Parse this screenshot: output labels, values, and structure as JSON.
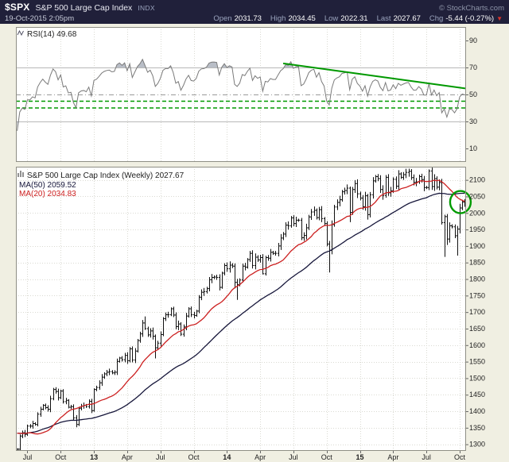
{
  "header": {
    "symbol": "$SPX",
    "name": "S&P 500 Large Cap Index",
    "exchange": "INDX",
    "copyright": "© StockCharts.com",
    "datetime": "19-Oct-2015 2:05pm",
    "quote": {
      "open_label": "Open",
      "open": "2031.73",
      "high_label": "High",
      "high": "2034.45",
      "low_label": "Low",
      "low": "2022.31",
      "last_label": "Last",
      "last": "2027.67",
      "chg_label": "Chg",
      "chg": "-5.44 (-0.27%)",
      "chg_direction": "down",
      "chg_arrow": "▼"
    },
    "colors": {
      "bg": "#20203a",
      "label": "#9aa3bd",
      "value": "#ffffff",
      "arrow": "#d9352b"
    }
  },
  "chart_data": [
    {
      "panel": "rsi",
      "type": "line",
      "title": "RSI(14) 49.68",
      "indicator": "RSI",
      "period": 14,
      "last_value": 49.68,
      "ylim": [
        0,
        100
      ],
      "yticks": [
        90,
        70,
        50,
        30,
        10
      ],
      "overbought_level": 70,
      "oversold_level": 30,
      "mid_level": 50,
      "green_dashed_levels": [
        45,
        40
      ],
      "trendline": {
        "from_week": 104,
        "from_rsi": 73,
        "to_week": 177,
        "to_rsi": 54.5,
        "color": "#009900"
      },
      "line_color": "#7a7a7a",
      "band_fill": "rgba(100,110,130,0.45)",
      "source": "RSI(14) computed from weekly_close of the price panel"
    },
    {
      "panel": "price",
      "type": "ohlc-bar",
      "title": "S&P 500 Large Cap Index (Weekly) 2027.67",
      "last_value": 2027.67,
      "legend": [
        {
          "label": "MA(50) 2059.52",
          "period": 50,
          "value": 2059.52,
          "color": "#16163a"
        },
        {
          "label": "MA(20) 2034.83",
          "period": 20,
          "value": 2034.83,
          "color": "#cc2020"
        }
      ],
      "ylim": [
        1280,
        2140
      ],
      "yticks": [
        2100,
        2050,
        2000,
        1950,
        1900,
        1850,
        1800,
        1750,
        1700,
        1650,
        1600,
        1550,
        1500,
        1450,
        1400,
        1350,
        1300
      ],
      "x_ticks": [
        {
          "week": 4,
          "label": "Jul",
          "bold": false
        },
        {
          "week": 17,
          "label": "Oct",
          "bold": false
        },
        {
          "week": 30,
          "label": "13",
          "bold": true
        },
        {
          "week": 43,
          "label": "Apr",
          "bold": false
        },
        {
          "week": 56,
          "label": "Jul",
          "bold": false
        },
        {
          "week": 69,
          "label": "Oct",
          "bold": false
        },
        {
          "week": 82,
          "label": "14",
          "bold": true
        },
        {
          "week": 95,
          "label": "Apr",
          "bold": false
        },
        {
          "week": 108,
          "label": "Jul",
          "bold": false
        },
        {
          "week": 121,
          "label": "Oct",
          "bold": false
        },
        {
          "week": 134,
          "label": "15",
          "bold": true
        },
        {
          "week": 147,
          "label": "Apr",
          "bold": false
        },
        {
          "week": 160,
          "label": "Jul",
          "bold": false
        },
        {
          "week": 173,
          "label": "Oct",
          "bold": false
        }
      ],
      "lead_in_close": [
        1390,
        1400,
        1403,
        1380,
        1369,
        1353,
        1340,
        1318,
        1295,
        1278,
        1286,
        1300,
        1310,
        1296
      ],
      "weekly_close": [
        1285,
        1325,
        1335,
        1330,
        1355,
        1355,
        1363,
        1360,
        1391,
        1406,
        1418,
        1411,
        1406,
        1438,
        1466,
        1460,
        1441,
        1461,
        1429,
        1433,
        1412,
        1414,
        1380,
        1360,
        1409,
        1416,
        1418,
        1414,
        1430,
        1402,
        1466,
        1472,
        1486,
        1503,
        1513,
        1518,
        1520,
        1516,
        1518,
        1551,
        1561,
        1556,
        1569,
        1553,
        1589,
        1555,
        1582,
        1614,
        1634,
        1667,
        1650,
        1631,
        1643,
        1627,
        1592,
        1606,
        1632,
        1680,
        1692,
        1692,
        1710,
        1691,
        1656,
        1664,
        1633,
        1655,
        1688,
        1710,
        1692,
        1690,
        1703,
        1745,
        1760,
        1762,
        1771,
        1798,
        1805,
        1806,
        1805,
        1775,
        1818,
        1841,
        1831,
        1842,
        1839,
        1790,
        1783,
        1797,
        1839,
        1836,
        1859,
        1878,
        1841,
        1866,
        1858,
        1865,
        1816,
        1865,
        1863,
        1881,
        1878,
        1878,
        1900,
        1924,
        1936,
        1963,
        1961,
        1985,
        1968,
        1978,
        1978,
        1925,
        1932,
        1955,
        1988,
        2003,
        2008,
        1986,
        2010,
        1983,
        1968,
        1906,
        1887,
        1965,
        2018,
        2032,
        2040,
        2064,
        2068,
        2075,
        2002,
        2071,
        2089,
        2058,
        2045,
        2019,
        2052,
        1995,
        2055,
        2097,
        2110,
        2104,
        2071,
        2053,
        2108,
        2061,
        2067,
        2102,
        2081,
        2118,
        2108,
        2116,
        2123,
        2126,
        2107,
        2093,
        2094,
        2110,
        2101,
        2077,
        2077,
        2127,
        2080,
        2104,
        2078,
        2092,
        1971,
        1989,
        1921,
        1961,
        1958,
        1931,
        1951,
        2015,
        2033,
        2028
      ],
      "low_overrides": {
        "54": 1560,
        "85": 1772,
        "86": 1737,
        "96": 1814,
        "122": 1820,
        "130": 1972,
        "137": 1980,
        "166": 1965,
        "167": 1867,
        "168": 1903,
        "172": 1871
      },
      "high_overrides": {
        "50": 1687,
        "153": 2134,
        "161": 2132
      },
      "bar_color": "#111111",
      "annotation_circle": {
        "week": 173.3,
        "price": 2033,
        "radius": 14,
        "color": "#009b00"
      }
    }
  ]
}
